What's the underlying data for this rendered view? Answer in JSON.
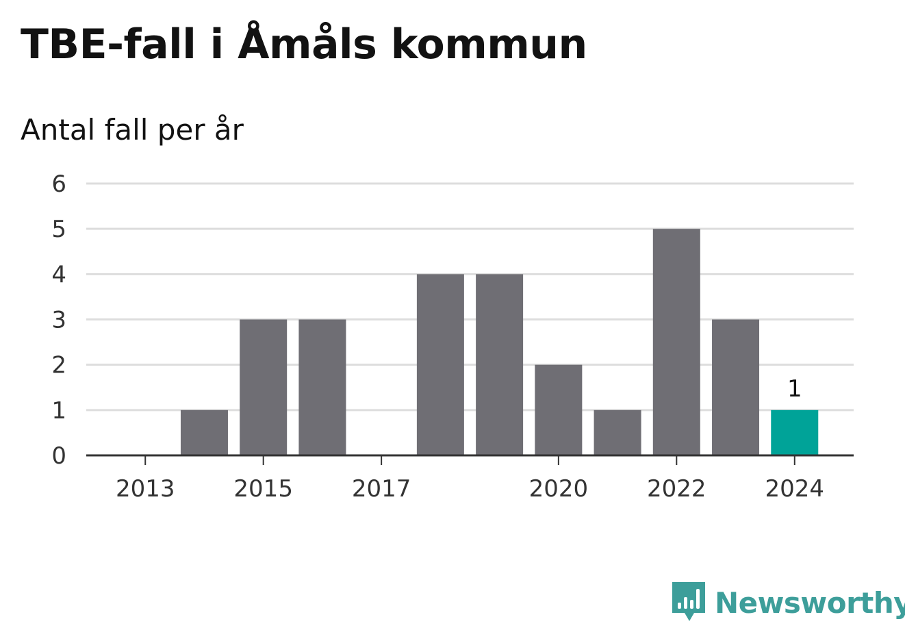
{
  "header": {
    "title": "TBE-fall i Åmåls kommun",
    "subtitle": "Antal fall per år"
  },
  "chart_data": {
    "type": "bar",
    "title": "TBE-fall i Åmåls kommun",
    "subtitle": "Antal fall per år",
    "categories": [
      "2013",
      "2014",
      "2015",
      "2016",
      "2017",
      "2018",
      "2019",
      "2020",
      "2021",
      "2022",
      "2023",
      "2024"
    ],
    "x_tick_labels": [
      "2013",
      "2015",
      "2017",
      "2020",
      "2022",
      "2024"
    ],
    "values": [
      0,
      1,
      3,
      3,
      0,
      4,
      4,
      2,
      1,
      5,
      3,
      1
    ],
    "ylim": [
      0,
      6
    ],
    "y_ticks": [
      0,
      1,
      2,
      3,
      4,
      5,
      6
    ],
    "grid": true,
    "highlight": {
      "category": "2024",
      "label": "1"
    },
    "colors": {
      "bar": "#6f6e74",
      "highlight": "#00a398",
      "grid": "#dddddd",
      "axis": "#333333"
    }
  },
  "branding": {
    "name": "Newsworthy",
    "icon": "newsworthy-logo-icon",
    "color": "#3d9e9a"
  }
}
